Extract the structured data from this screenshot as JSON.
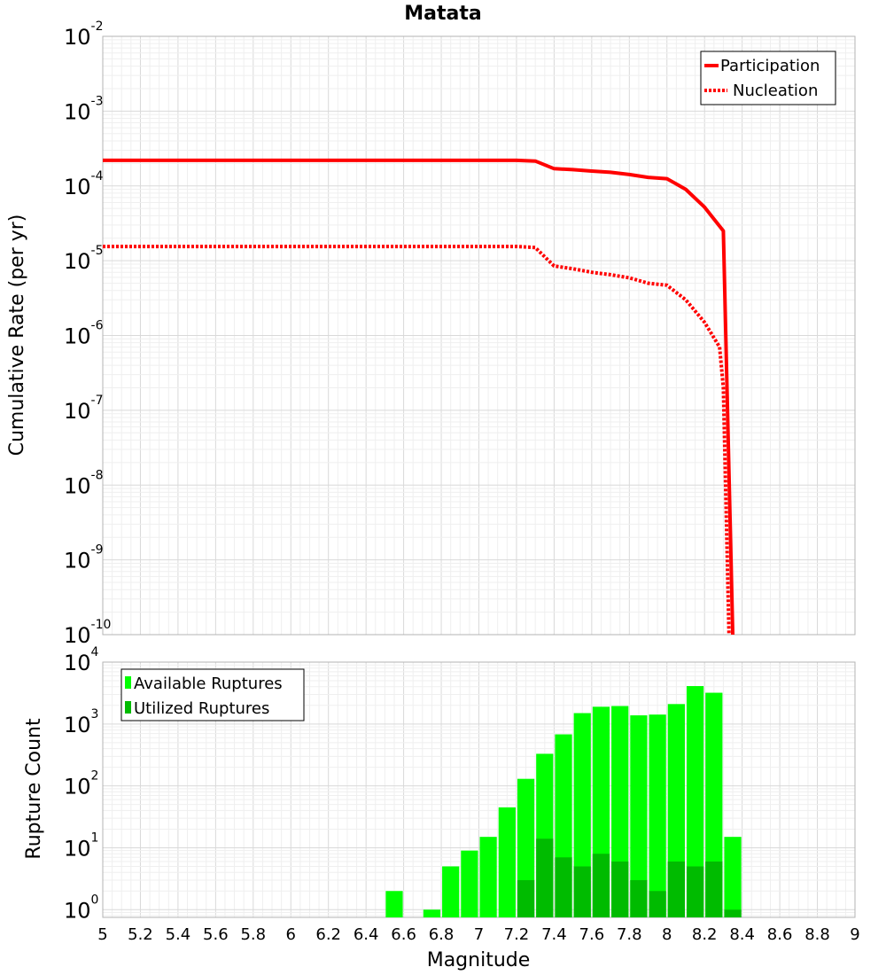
{
  "chart_data": [
    {
      "type": "line",
      "title": "Matata",
      "ylabel": "Cumulative Rate (per yr)",
      "xlabel": "",
      "xlim": [
        5,
        9
      ],
      "ylim": [
        1e-10,
        0.01
      ],
      "yscale": "log",
      "y_tick_exponents": [
        -2,
        -3,
        -4,
        -5,
        -6,
        -7,
        -8,
        -9,
        -10
      ],
      "legend_position": "top-right",
      "series": [
        {
          "name": "Participation",
          "color": "#ff0000",
          "style": "solid",
          "x": [
            5.0,
            7.2,
            7.3,
            7.4,
            7.5,
            7.6,
            7.7,
            7.8,
            7.9,
            8.0,
            8.1,
            8.2,
            8.3,
            8.35
          ],
          "y": [
            0.00022,
            0.00022,
            0.000215,
            0.00017,
            0.000165,
            0.000158,
            0.000152,
            0.000142,
            0.00013,
            0.000125,
            9e-05,
            5.2e-05,
            2.5e-05,
            1e-10
          ]
        },
        {
          "name": "Nucleation",
          "color": "#ff0000",
          "style": "dotted",
          "x": [
            5.0,
            7.2,
            7.3,
            7.4,
            7.5,
            7.6,
            7.7,
            7.8,
            7.9,
            8.0,
            8.1,
            8.2,
            8.28,
            8.3,
            8.33
          ],
          "y": [
            1.55e-05,
            1.55e-05,
            1.5e-05,
            8.5e-06,
            7.8e-06,
            7e-06,
            6.5e-06,
            5.9e-06,
            5e-06,
            4.7e-06,
            3e-06,
            1.5e-06,
            7e-07,
            2e-07,
            1e-10
          ]
        }
      ]
    },
    {
      "type": "bar",
      "title": "",
      "ylabel": "Rupture Count",
      "xlabel": "Magnitude",
      "xlim": [
        5,
        9
      ],
      "ylim": [
        0.75,
        10000
      ],
      "yscale": "log",
      "y_tick_exponents": [
        4,
        3,
        2,
        1,
        0
      ],
      "x_tick_labels": [
        "5",
        "5.2",
        "5.4",
        "5.6",
        "5.8",
        "6",
        "6.2",
        "6.4",
        "6.6",
        "6.8",
        "7",
        "7.2",
        "7.4",
        "7.6",
        "7.8",
        "8",
        "8.2",
        "8.4",
        "8.6",
        "8.8",
        "9"
      ],
      "bin_width": 0.1,
      "legend_position": "top-left",
      "categories": [
        6.55,
        6.75,
        6.85,
        6.95,
        7.05,
        7.15,
        7.25,
        7.35,
        7.45,
        7.55,
        7.65,
        7.75,
        7.85,
        7.95,
        8.05,
        8.15,
        8.25,
        8.35
      ],
      "series": [
        {
          "name": "Available Ruptures",
          "color": "#00ff00",
          "values": [
            2,
            1,
            5,
            9,
            15,
            45,
            130,
            330,
            680,
            1500,
            1900,
            1950,
            1380,
            1420,
            2100,
            4100,
            3200,
            15
          ]
        },
        {
          "name": "Utilized Ruptures",
          "color": "#00bb00",
          "values": [
            0,
            0,
            0,
            0,
            0,
            0,
            3,
            14,
            7,
            5,
            8,
            6,
            3,
            2,
            6,
            5,
            6,
            1
          ]
        }
      ]
    }
  ]
}
